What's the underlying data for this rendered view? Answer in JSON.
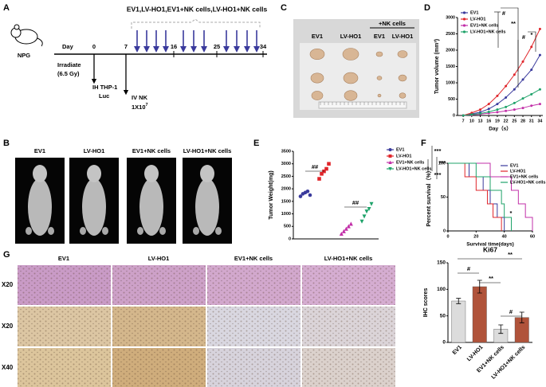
{
  "panel_letters": [
    "A",
    "B",
    "C",
    "D",
    "E",
    "F",
    "G"
  ],
  "schematic": {
    "mouse": "NPG",
    "day": "Day",
    "days": [
      "0",
      "7",
      "16",
      "25",
      "34"
    ],
    "groups": "EV1,LV-HO1,EV1+NK cells,LV-HO1+NK cells",
    "irradiate": "Irradiate",
    "dose": "(6.5 Gy)",
    "ih": "IH THP-1",
    "luc": "Luc",
    "iv": "IV NK",
    "nk_dose": "1X10",
    "nk_dose_exp": "7"
  },
  "tumor_photo": {
    "group_label": "+NK cells",
    "columns": [
      "EV1",
      "LV-HO1",
      "EV1",
      "LV-HO1"
    ]
  },
  "imaging": {
    "columns": [
      "EV1",
      "LV-HO1",
      "EV1+NK cells",
      "LV-HO1+NK cells"
    ]
  },
  "ihc": {
    "columns": [
      "EV1",
      "LV-HO1",
      "EV1+NK cells",
      "LV-HO1+NK cells"
    ],
    "rows": [
      "X20",
      "X20",
      "X40"
    ]
  },
  "chart_data": [
    {
      "type": "line",
      "x_label": "Day（s）",
      "y_label": "Tumor volume (mm³)",
      "x": [
        7,
        10,
        13,
        16,
        19,
        22,
        25,
        28,
        31,
        34
      ],
      "xlim": [
        5,
        35
      ],
      "xticks": [
        7,
        10,
        13,
        16,
        19,
        22,
        25,
        28,
        31,
        34
      ],
      "ylim": [
        0,
        3000
      ],
      "yticks": [
        0,
        500,
        1000,
        1500,
        2000,
        2500,
        3000
      ],
      "legend": "upper left",
      "annotations": [
        "#",
        "**",
        "#",
        "*"
      ],
      "series": [
        {
          "name": "EV1",
          "color": "#3a3a9c",
          "values": [
            0,
            50,
            100,
            200,
            350,
            550,
            800,
            1100,
            1400,
            1850
          ]
        },
        {
          "name": "LV-HO1",
          "color": "#e0262b",
          "values": [
            0,
            80,
            180,
            350,
            600,
            900,
            1250,
            1650,
            2100,
            2650
          ]
        },
        {
          "name": "EV1+NK cells",
          "color": "#c22fa8",
          "values": [
            0,
            20,
            40,
            70,
            100,
            140,
            180,
            230,
            300,
            350
          ]
        },
        {
          "name": "LV-HO1+NK cells",
          "color": "#1fa36a",
          "values": [
            0,
            30,
            60,
            110,
            180,
            260,
            380,
            520,
            650,
            800
          ]
        }
      ]
    },
    {
      "type": "scatter",
      "y_label": "Tumor Weight(mg)",
      "ylim": [
        0,
        3500
      ],
      "yticks": [
        0,
        500,
        1000,
        1500,
        2000,
        2500,
        3000,
        3500
      ],
      "legend": "right",
      "annotations": [
        "##",
        "##",
        "***",
        "***",
        "***"
      ],
      "series": [
        {
          "name": "EV1",
          "color": "#3a3a9c",
          "marker": "circle",
          "values": [
            1700,
            1800,
            1850,
            1900,
            1750
          ]
        },
        {
          "name": "LV-HO1",
          "color": "#e0262b",
          "marker": "square",
          "values": [
            2400,
            2600,
            2700,
            2800,
            3000
          ]
        },
        {
          "name": "EV1+NK cells",
          "color": "#c22fa8",
          "marker": "triangle",
          "values": [
            200,
            300,
            400,
            500,
            600
          ]
        },
        {
          "name": "LV-HO1+NK cells",
          "color": "#1fa36a",
          "marker": "triangle-down",
          "values": [
            700,
            900,
            1100,
            1200,
            1400
          ]
        }
      ]
    },
    {
      "type": "step",
      "x_label": "Survival time(days)",
      "y_label": "Percent survival（%）",
      "xlim": [
        0,
        60
      ],
      "xticks": [
        0,
        20,
        40,
        60
      ],
      "ylim": [
        0,
        100
      ],
      "yticks": [
        0,
        50,
        100
      ],
      "legend": "upper right",
      "annotations": [
        "*"
      ],
      "series": [
        {
          "name": "EV1",
          "color": "#3a3a9c",
          "x": [
            0,
            15,
            25,
            30,
            35,
            40
          ],
          "values": [
            100,
            80,
            60,
            40,
            20,
            0
          ]
        },
        {
          "name": "LV-HO1",
          "color": "#e0262b",
          "x": [
            0,
            12,
            20,
            28,
            32,
            38
          ],
          "values": [
            100,
            80,
            60,
            40,
            20,
            0
          ]
        },
        {
          "name": "EV1+NK cells",
          "color": "#c22fa8",
          "x": [
            0,
            30,
            45,
            50,
            55,
            60
          ],
          "values": [
            100,
            80,
            60,
            40,
            20,
            0
          ]
        },
        {
          "name": "LV-HO1+NK cells",
          "color": "#1fa36a",
          "x": [
            0,
            20,
            30,
            38,
            40,
            45
          ],
          "values": [
            100,
            80,
            60,
            40,
            20,
            0
          ]
        }
      ]
    },
    {
      "type": "bar",
      "title": "Ki67",
      "y_label": "IHC scores",
      "categories": [
        "EV1",
        "LV-HO1",
        "EV1+NK cells",
        "LV-HO1+NK cells"
      ],
      "values": [
        78,
        105,
        25,
        47
      ],
      "errors": [
        5,
        12,
        8,
        10
      ],
      "colors": [
        "#dcdcdc",
        "#b0533a",
        "#dcdcdc",
        "#b0533a"
      ],
      "ylim": [
        0,
        150
      ],
      "yticks": [
        0,
        50,
        100,
        150
      ],
      "annotations": [
        "#",
        "**",
        "**",
        "#"
      ]
    }
  ]
}
